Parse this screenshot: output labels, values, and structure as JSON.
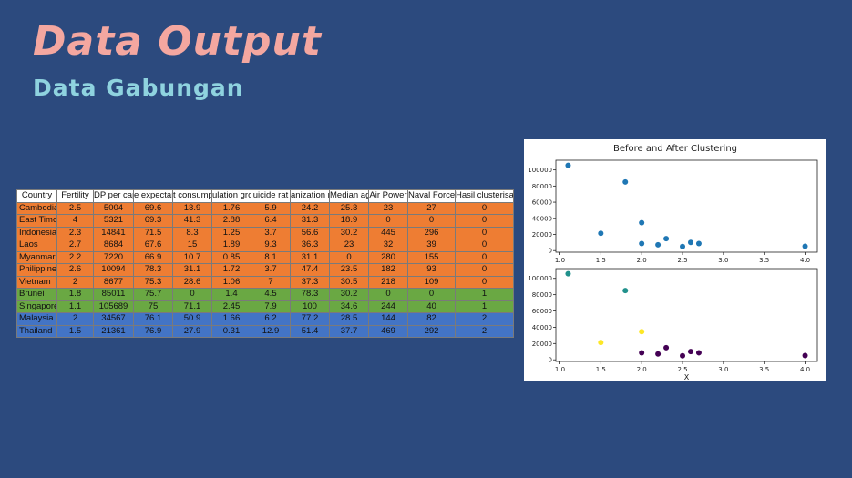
{
  "slide": {
    "title": "Data Output",
    "subtitle": "Data Gabungan",
    "colors": {
      "background": "#2c4a7e",
      "title": "#f4a7a0",
      "subtitle": "#8fd3df"
    }
  },
  "table": {
    "headers": [
      "Country",
      "Fertility",
      "DP per capi",
      "e expectan",
      "t consump",
      "ulation gro",
      "uicide rat",
      "anization r",
      "Median ag",
      "Air Power",
      "Naval Force",
      "Hasil clusterisasi"
    ],
    "cluster_colors": {
      "0": "#ee7d33",
      "1": "#6aa843",
      "2": "#4374c5"
    },
    "rows": [
      {
        "country": "Cambodia",
        "values": [
          "2.5",
          "5004",
          "69.6",
          "13.9",
          "1.76",
          "5.9",
          "24.2",
          "25.3",
          "23",
          "27",
          "0"
        ],
        "cluster": 0
      },
      {
        "country": "East Timor",
        "values": [
          "4",
          "5321",
          "69.3",
          "41.3",
          "2.88",
          "6.4",
          "31.3",
          "18.9",
          "0",
          "0",
          "0"
        ],
        "cluster": 0
      },
      {
        "country": "Indonesia",
        "values": [
          "2.3",
          "14841",
          "71.5",
          "8.3",
          "1.25",
          "3.7",
          "56.6",
          "30.2",
          "445",
          "296",
          "0"
        ],
        "cluster": 0
      },
      {
        "country": "Laos",
        "values": [
          "2.7",
          "8684",
          "67.6",
          "15",
          "1.89",
          "9.3",
          "36.3",
          "23",
          "32",
          "39",
          "0"
        ],
        "cluster": 0
      },
      {
        "country": "Myanmar",
        "values": [
          "2.2",
          "7220",
          "66.9",
          "10.7",
          "0.85",
          "8.1",
          "31.1",
          "0",
          "280",
          "155",
          "0"
        ],
        "cluster": 0
      },
      {
        "country": "Philippines",
        "values": [
          "2.6",
          "10094",
          "78.3",
          "31.1",
          "1.72",
          "3.7",
          "47.4",
          "23.5",
          "182",
          "93",
          "0"
        ],
        "cluster": 0
      },
      {
        "country": "Vietnam",
        "values": [
          "2",
          "8677",
          "75.3",
          "28.6",
          "1.06",
          "7",
          "37.3",
          "30.5",
          "218",
          "109",
          "0"
        ],
        "cluster": 0
      },
      {
        "country": "Brunei",
        "values": [
          "1.8",
          "85011",
          "75.7",
          "0",
          "1.4",
          "4.5",
          "78.3",
          "30.2",
          "0",
          "0",
          "1"
        ],
        "cluster": 1
      },
      {
        "country": "Singapore",
        "values": [
          "1.1",
          "105689",
          "75",
          "71.1",
          "2.45",
          "7.9",
          "100",
          "34.6",
          "244",
          "40",
          "1"
        ],
        "cluster": 1
      },
      {
        "country": "Malaysia",
        "values": [
          "2",
          "34567",
          "76.1",
          "50.9",
          "1.66",
          "6.2",
          "77.2",
          "28.5",
          "144",
          "82",
          "2"
        ],
        "cluster": 2
      },
      {
        "country": "Thailand",
        "values": [
          "1.5",
          "21361",
          "76.9",
          "27.9",
          "0.31",
          "12.9",
          "51.4",
          "37.7",
          "469",
          "292",
          "2"
        ],
        "cluster": 2
      }
    ]
  },
  "chart_data": [
    {
      "type": "scatter",
      "title": "Before and After Clustering",
      "xlabel": "",
      "ylabel": "",
      "xlim": [
        0.95,
        4.15
      ],
      "ylim": [
        -2000,
        112000
      ],
      "xticks": [
        "1.0",
        "1.5",
        "2.0",
        "2.5",
        "3.0",
        "3.5",
        "4.0"
      ],
      "yticks": [
        "0",
        "20000",
        "40000",
        "60000",
        "80000",
        "100000"
      ],
      "point_color": "#1f77b4",
      "points": [
        {
          "x": 1.1,
          "y": 105689
        },
        {
          "x": 1.8,
          "y": 85011
        },
        {
          "x": 2.0,
          "y": 34567
        },
        {
          "x": 1.5,
          "y": 21361
        },
        {
          "x": 2.3,
          "y": 14841
        },
        {
          "x": 2.6,
          "y": 10094
        },
        {
          "x": 2.0,
          "y": 8677
        },
        {
          "x": 2.7,
          "y": 8684
        },
        {
          "x": 2.2,
          "y": 7220
        },
        {
          "x": 2.5,
          "y": 5004
        },
        {
          "x": 4.0,
          "y": 5321
        }
      ]
    },
    {
      "type": "scatter",
      "title": "",
      "xlabel": "X",
      "ylabel": "",
      "xlim": [
        0.95,
        4.15
      ],
      "ylim": [
        -2000,
        112000
      ],
      "xticks": [
        "1.0",
        "1.5",
        "2.0",
        "2.5",
        "3.0",
        "3.5",
        "4.0"
      ],
      "yticks": [
        "0",
        "20000",
        "40000",
        "60000",
        "80000",
        "100000"
      ],
      "cluster_colors": {
        "0": "#440154",
        "1": "#21918c",
        "2": "#fde725"
      },
      "points": [
        {
          "x": 1.1,
          "y": 105689,
          "cluster": 1
        },
        {
          "x": 1.8,
          "y": 85011,
          "cluster": 1
        },
        {
          "x": 2.0,
          "y": 34567,
          "cluster": 2
        },
        {
          "x": 1.5,
          "y": 21361,
          "cluster": 2
        },
        {
          "x": 2.3,
          "y": 14841,
          "cluster": 0
        },
        {
          "x": 2.6,
          "y": 10094,
          "cluster": 0
        },
        {
          "x": 2.0,
          "y": 8677,
          "cluster": 0
        },
        {
          "x": 2.7,
          "y": 8684,
          "cluster": 0
        },
        {
          "x": 2.2,
          "y": 7220,
          "cluster": 0
        },
        {
          "x": 2.5,
          "y": 5004,
          "cluster": 0
        },
        {
          "x": 4.0,
          "y": 5321,
          "cluster": 0
        }
      ]
    }
  ]
}
